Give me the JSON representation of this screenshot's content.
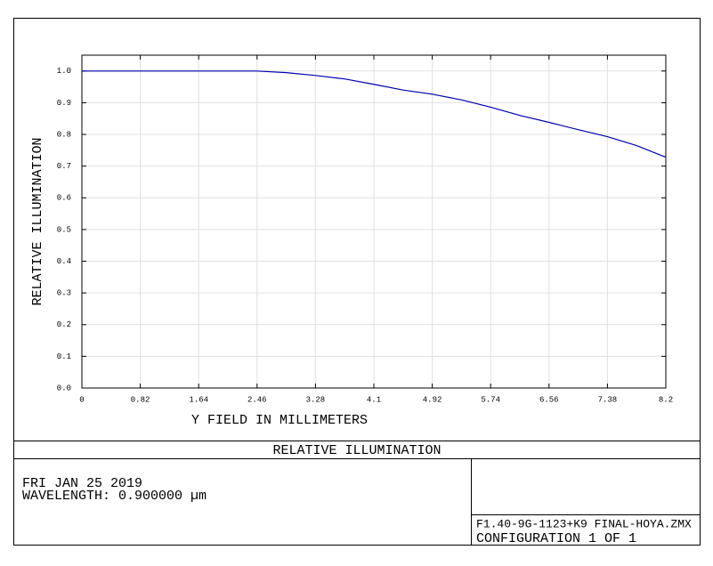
{
  "chart_data": {
    "type": "line",
    "title": "RELATIVE ILLUMINATION",
    "xlabel": "Y FIELD IN MILLIMETERS",
    "ylabel": "RELATIVE ILLUMINATION",
    "annotations": [
      "FRI JAN 25 2019",
      "WAVELENGTH: 0.900000 µm",
      "F1.40-9G-1123+K9 FINAL-HOYA.ZMX",
      "CONFIGURATION 1 OF 1"
    ],
    "x": [
      0,
      0.41,
      0.82,
      1.23,
      1.64,
      2.05,
      2.46,
      2.87,
      3.28,
      3.69,
      4.1,
      4.51,
      4.92,
      5.33,
      5.74,
      6.15,
      6.56,
      6.97,
      7.38,
      7.79,
      8.2
    ],
    "series": [
      {
        "color": "#0000b0",
        "values": [
          1.0,
          1.0,
          1.0,
          1.0,
          1.0,
          1.0,
          1.0,
          0.995,
          0.986,
          0.975,
          0.958,
          0.94,
          0.927,
          0.909,
          0.886,
          0.86,
          0.838,
          0.815,
          0.793,
          0.765,
          0.728
        ]
      }
    ],
    "xlim": [
      0,
      8.2
    ],
    "ylim": [
      0,
      1.05
    ],
    "xticks": [
      0,
      0.82,
      1.64,
      2.46,
      3.28,
      4.1,
      4.92,
      5.74,
      6.56,
      7.38,
      8.2
    ],
    "yticks": [
      {
        "value": 0,
        "label": "0.0"
      },
      0.1,
      0.2,
      0.3,
      0.4,
      0.5,
      0.6,
      0.7,
      0.8,
      0.9,
      {
        "value": 1,
        "label": "1.0"
      }
    ],
    "grid": true
  }
}
